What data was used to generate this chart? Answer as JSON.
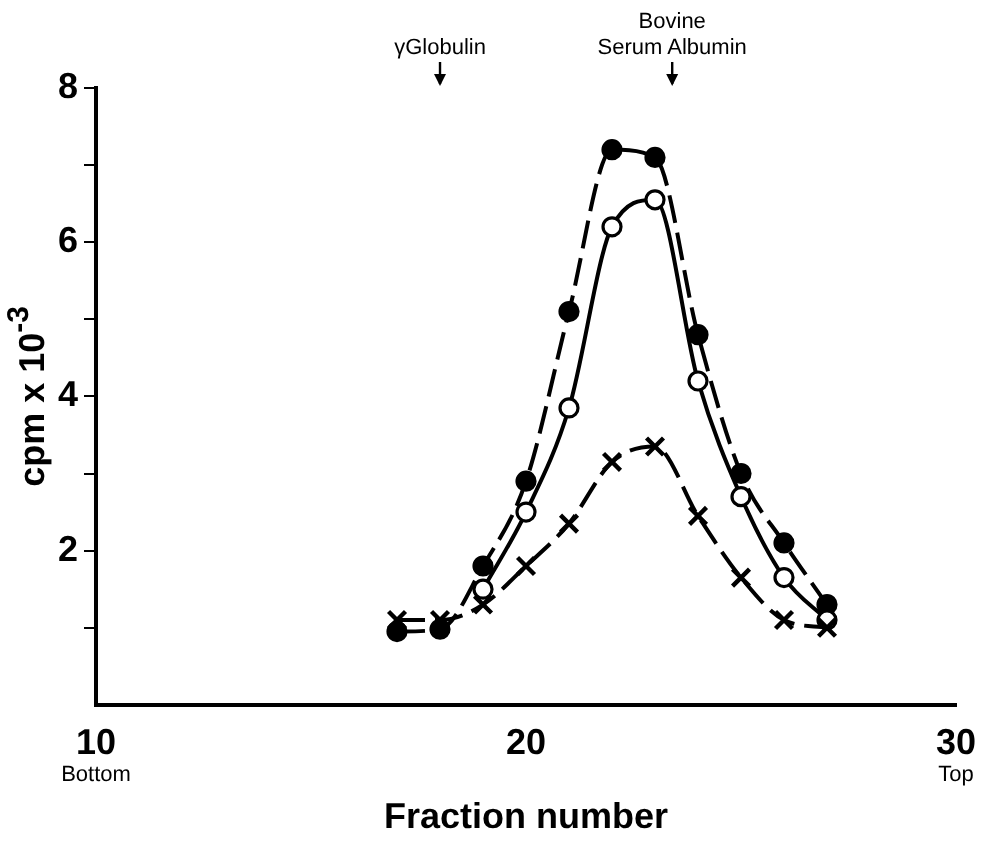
{
  "chart_data": {
    "type": "line",
    "xlabel": "Fraction number",
    "ylabel": "cpm x 10$^{-3}$",
    "xlim": [
      10,
      30
    ],
    "xticks": [
      10,
      20,
      30
    ],
    "ylim": [
      0,
      8
    ],
    "yticks": [
      {
        "value": 1,
        "label": null
      },
      2,
      {
        "value": 3,
        "label": null
      },
      4,
      {
        "value": 5,
        "label": null
      },
      6,
      {
        "value": 7,
        "label": null
      },
      8
    ],
    "grid": false,
    "legend": false,
    "x": [
      17,
      18,
      19,
      20,
      21,
      22,
      23,
      24,
      25,
      26,
      27
    ],
    "series": [
      {
        "color": "#000000",
        "marker": "circle",
        "line_style": "dashed",
        "values": [
          0.95,
          0.98,
          1.8,
          2.9,
          5.1,
          7.2,
          7.1,
          4.8,
          3.0,
          2.1,
          1.3
        ]
      },
      {
        "color": "#000000",
        "marker": "circle-open",
        "line_style": "solid",
        "values": [
          null,
          null,
          1.5,
          2.5,
          3.85,
          6.2,
          6.55,
          4.2,
          2.7,
          1.65,
          1.1
        ]
      },
      {
        "color": "#000000",
        "marker": "cross",
        "line_style": "dashed",
        "values": [
          1.1,
          1.1,
          1.3,
          1.8,
          2.35,
          3.15,
          3.35,
          2.45,
          1.65,
          1.1,
          1.0
        ]
      }
    ],
    "annotations": [
      "γGlobulin",
      "Bovine\nSerum Albumin",
      "Bottom",
      "Top"
    ]
  }
}
